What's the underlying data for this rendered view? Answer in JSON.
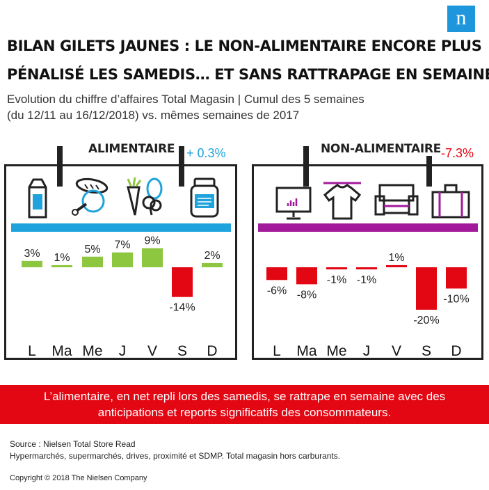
{
  "logo_letter": "n",
  "title_lines": [
    "BILAN GILETS JAUNES : LE NON-ALIMENTAIRE ENCORE PLUS",
    "PÉNALISÉ LES SAMEDIS… ET SANS RATTRAPAGE EN SEMAINE"
  ],
  "subtitle_lines": [
    "Evolution du chiffre d’affaires Total Magasin | Cumul des 5 semaines",
    "(du 12/11 au 16/12/2018) vs. mêmes semaines de 2017"
  ],
  "colors": {
    "food_accent": "#1ea3dc",
    "nonfood_accent": "#a3199b",
    "positive_food": "#8dc63f",
    "negative": "#e30613",
    "banner": "#e30613"
  },
  "chart_data": [
    {
      "type": "bar",
      "title": "ALIMENTAIRE",
      "total_label": "+ 0.3%",
      "categories": [
        "L",
        "Ma",
        "Me",
        "J",
        "V",
        "S",
        "D"
      ],
      "values": [
        3,
        1,
        5,
        7,
        9,
        -14,
        2
      ],
      "value_labels": [
        "3%",
        "1%",
        "5%",
        "7%",
        "9%",
        "-14%",
        "2%"
      ],
      "unit": "%",
      "ylim": [
        -20,
        10
      ],
      "grid": false,
      "icons": [
        "milk-carton-icon",
        "bread-chicken-icon",
        "vegetables-icon",
        "jar-icon"
      ]
    },
    {
      "type": "bar",
      "title": "NON-ALIMENTAIRE",
      "total_label": "-7.3%",
      "categories": [
        "L",
        "Ma",
        "Me",
        "J",
        "V",
        "S",
        "D"
      ],
      "values": [
        -6,
        -8,
        -1,
        -1,
        1,
        -20,
        -10
      ],
      "value_labels": [
        "-6%",
        "-8%",
        "-1%",
        "-1%",
        "1%",
        "-20%",
        "-10%"
      ],
      "unit": "%",
      "ylim": [
        -20,
        10
      ],
      "grid": false,
      "icons": [
        "monitor-icon",
        "tshirt-icon",
        "sofa-icon",
        "suitcase-icon"
      ]
    }
  ],
  "banner_lines": [
    "L’alimentaire, en net repli lors des samedis, se rattrape en semaine avec des",
    "anticipations et reports significatifs  des consommateurs."
  ],
  "source_lines": [
    "Source : Nielsen  Total Store Read",
    "Hypermarchés,  supermarchés,  drives,  proximité  et SDMP. Total magasin  hors carburants."
  ],
  "copyright": "Copyright © 2018 The Nielsen Company"
}
